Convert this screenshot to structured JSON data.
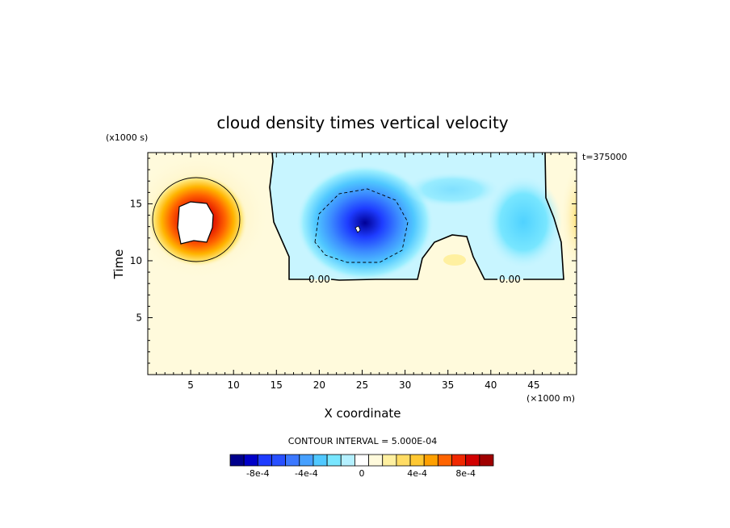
{
  "chart_data": {
    "type": "contour",
    "title": "cloud density times vertical velocity",
    "xlabel": "X coordinate",
    "ylabel": "Time",
    "x_unit": "(×1000 m)",
    "y_unit": "(x1000 s)",
    "time_label": "t=375000",
    "xlim": [
      0,
      50
    ],
    "ylim": [
      0,
      19.5
    ],
    "x_ticks": [
      "5",
      "10",
      "15",
      "20",
      "25",
      "30",
      "35",
      "40",
      "45"
    ],
    "x_tick_values": [
      5,
      10,
      15,
      20,
      25,
      30,
      35,
      40,
      45
    ],
    "y_ticks": [
      "5",
      "10",
      "15"
    ],
    "y_tick_values": [
      5,
      10,
      15
    ],
    "contour_interval_text": "CONTOUR INTERVAL = 5.000E-04",
    "zero_contour_labels": [
      "0.00",
      "0.00"
    ],
    "colorbar": {
      "labels": [
        "-8e-4",
        "-4e-4",
        "0",
        "4e-4",
        "8e-4"
      ],
      "colors": [
        "#00008c",
        "#0000c8",
        "#1e3cff",
        "#2850ff",
        "#3c78ff",
        "#46a0ff",
        "#50c8ff",
        "#78e6ff",
        "#b4f0ff",
        "#ffffff",
        "#fffadc",
        "#fff0a0",
        "#ffdc64",
        "#ffc832",
        "#ffa000",
        "#ff6400",
        "#f02800",
        "#d20000",
        "#a00000"
      ]
    },
    "features": [
      {
        "name": "positive-maximum",
        "x": 6,
        "y": 13.5,
        "sign": "positive"
      },
      {
        "name": "negative-minimum",
        "x": 25,
        "y": 13,
        "sign": "negative"
      },
      {
        "name": "negative-region-right",
        "x": 42,
        "y": 12.5,
        "sign": "negative"
      }
    ]
  }
}
